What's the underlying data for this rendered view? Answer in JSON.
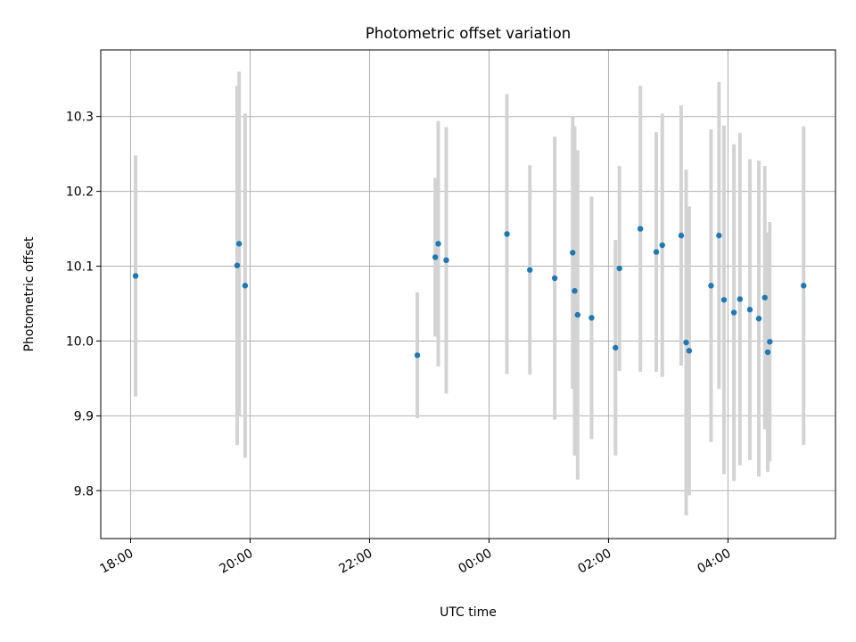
{
  "chart_data": {
    "type": "scatter",
    "title": "Photometric offset variation",
    "xlabel": "UTC time",
    "ylabel": "Photometric offset",
    "x_ticks": [
      "18:00",
      "20:00",
      "22:00",
      "00:00",
      "02:00",
      "04:00"
    ],
    "y_ticks": [
      "9.8",
      "9.9",
      "10.0",
      "10.1",
      "10.2",
      "10.3"
    ],
    "x_tick_hours": [
      18,
      20,
      22,
      24,
      26,
      28
    ],
    "y_tick_values": [
      9.8,
      9.9,
      10.0,
      10.1,
      10.2,
      10.3
    ],
    "xlim": [
      "17:30",
      "05:48"
    ],
    "ylim": [
      9.736,
      10.389
    ],
    "grid": true,
    "colors": {
      "marker": "#1f77b4",
      "errorbar": "#d3d3d3",
      "grid": "#b0b0b0"
    },
    "points": [
      {
        "t": "18:05",
        "y": 10.087,
        "err": 0.161
      },
      {
        "t": "19:47",
        "y": 10.101,
        "err": 0.24
      },
      {
        "t": "19:49",
        "y": 10.13,
        "err": 0.23
      },
      {
        "t": "19:55",
        "y": 10.074,
        "err": 0.23
      },
      {
        "t": "22:48",
        "y": 9.981,
        "err": 0.084
      },
      {
        "t": "23:06",
        "y": 10.112,
        "err": 0.106
      },
      {
        "t": "23:09",
        "y": 10.13,
        "err": 0.164
      },
      {
        "t": "23:17",
        "y": 10.108,
        "err": 0.178
      },
      {
        "t": "00:18",
        "y": 10.143,
        "err": 0.187
      },
      {
        "t": "00:41",
        "y": 10.095,
        "err": 0.14
      },
      {
        "t": "01:06",
        "y": 10.084,
        "err": 0.189
      },
      {
        "t": "01:24",
        "y": 10.118,
        "err": 0.182
      },
      {
        "t": "01:26",
        "y": 10.067,
        "err": 0.22
      },
      {
        "t": "01:29",
        "y": 10.035,
        "err": 0.22
      },
      {
        "t": "01:43",
        "y": 10.031,
        "err": 0.162
      },
      {
        "t": "02:07",
        "y": 9.991,
        "err": 0.144
      },
      {
        "t": "02:11",
        "y": 10.097,
        "err": 0.137
      },
      {
        "t": "02:32",
        "y": 10.15,
        "err": 0.191
      },
      {
        "t": "02:48",
        "y": 10.119,
        "err": 0.16
      },
      {
        "t": "02:54",
        "y": 10.128,
        "err": 0.176
      },
      {
        "t": "03:13",
        "y": 10.141,
        "err": 0.174
      },
      {
        "t": "03:18",
        "y": 9.998,
        "err": 0.231
      },
      {
        "t": "03:21",
        "y": 9.987,
        "err": 0.193
      },
      {
        "t": "03:43",
        "y": 10.074,
        "err": 0.209
      },
      {
        "t": "03:51",
        "y": 10.141,
        "err": 0.205
      },
      {
        "t": "03:56",
        "y": 10.055,
        "err": 0.233
      },
      {
        "t": "04:06",
        "y": 10.038,
        "err": 0.225
      },
      {
        "t": "04:12",
        "y": 10.056,
        "err": 0.222
      },
      {
        "t": "04:22",
        "y": 10.042,
        "err": 0.201
      },
      {
        "t": "04:31",
        "y": 10.03,
        "err": 0.211
      },
      {
        "t": "04:37",
        "y": 10.058,
        "err": 0.176
      },
      {
        "t": "04:40",
        "y": 9.985,
        "err": 0.16
      },
      {
        "t": "04:42",
        "y": 9.999,
        "err": 0.16
      },
      {
        "t": "05:16",
        "y": 10.074,
        "err": 0.213
      }
    ]
  }
}
